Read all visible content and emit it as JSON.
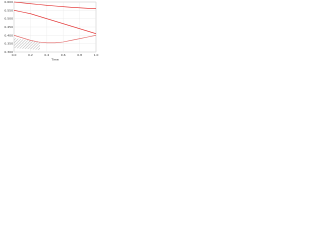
{
  "chart_data": {
    "type": "line",
    "x_label": "Time",
    "x": [
      0,
      0.1,
      0.2,
      0.3,
      0.4,
      0.5,
      0.6,
      0.7,
      0.8,
      0.9,
      1.0
    ],
    "series": [
      {
        "color": "#e02020",
        "values": [
          0.6,
          0.595,
          0.59,
          0.585,
          0.58,
          0.576,
          0.572,
          0.568,
          0.565,
          0.562,
          0.56
        ]
      },
      {
        "color": "#e02020",
        "values": [
          0.55,
          0.54,
          0.53,
          0.515,
          0.5,
          0.485,
          0.47,
          0.455,
          0.44,
          0.425,
          0.41
        ]
      },
      {
        "color": "#e06060",
        "values": [
          0.4,
          0.385,
          0.37,
          0.36,
          0.355,
          0.355,
          0.36,
          0.37,
          0.38,
          0.39,
          0.4
        ]
      }
    ],
    "xlim": [
      0,
      1.0
    ],
    "xticks": [
      {
        "value": 0,
        "label": "0.0"
      },
      {
        "value": 0.2,
        "label": "0.2"
      },
      {
        "value": 0.4,
        "label": "0.4"
      },
      {
        "value": 0.6,
        "label": "0.6"
      },
      {
        "value": 0.8,
        "label": "0.8"
      },
      {
        "value": 1.0,
        "label": "1.0"
      }
    ],
    "ylim": [
      0.3,
      0.6
    ],
    "yticks": [
      {
        "value": 0.3,
        "label": "0.300"
      },
      {
        "value": 0.35,
        "label": "0.350"
      },
      {
        "value": 0.4,
        "label": "0.400"
      },
      {
        "value": 0.45,
        "label": "0.450"
      },
      {
        "value": 0.5,
        "label": "0.500"
      },
      {
        "value": 0.55,
        "label": "0.550"
      },
      {
        "value": 0.6,
        "label": "0.600"
      }
    ],
    "grid": true
  }
}
